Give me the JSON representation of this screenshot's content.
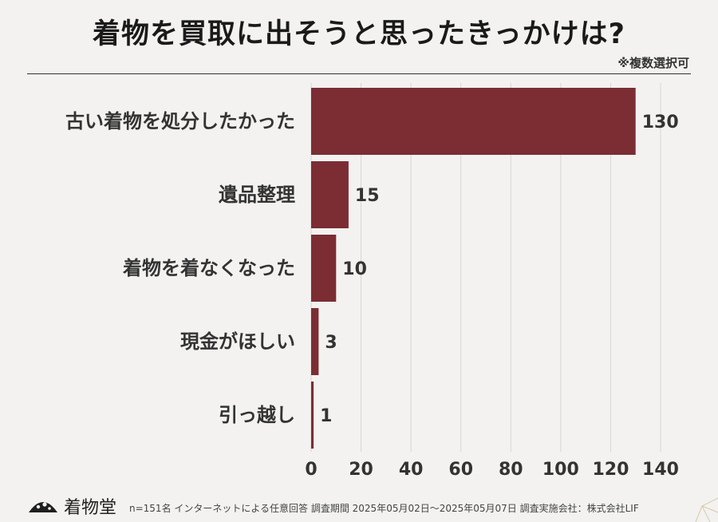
{
  "title": "着物を買取に出そうと思ったきっかけは?",
  "note": "※複数選択可",
  "chart_data": {
    "type": "bar",
    "orientation": "horizontal",
    "categories": [
      "古い着物を処分したかった",
      "遺品整理",
      "着物を着なくなった",
      "現金がほしい",
      "引っ越し"
    ],
    "values": [
      130,
      15,
      10,
      3,
      1
    ],
    "xlim": [
      0,
      140
    ],
    "xticks": [
      0,
      20,
      40,
      60,
      80,
      100,
      120,
      140
    ],
    "grid": true,
    "bar_color": "#7b2d33"
  },
  "footer": {
    "brand": "着物堂",
    "survey": "n=151名 インターネットによる任意回答 調査期間 2025年05月02日〜2025年05月07日 調査実施会社：株式会社LIF"
  }
}
